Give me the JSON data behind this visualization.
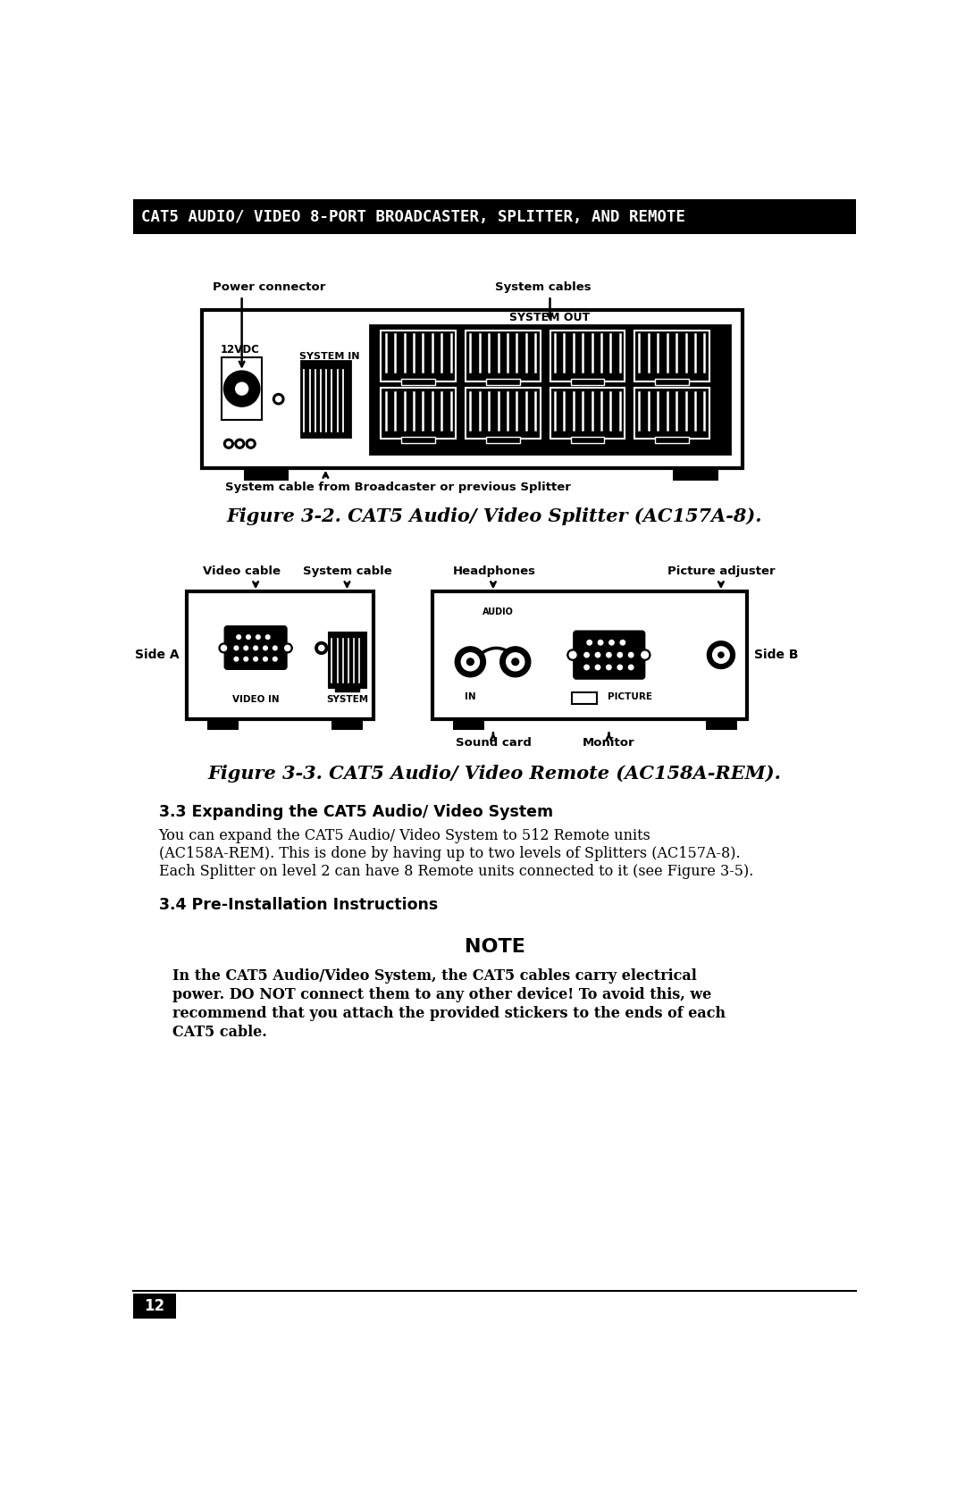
{
  "page_bg": "#ffffff",
  "header_bg": "#000000",
  "header_text": "CAT5 AUDIO/ VIDEO 8-PORT BROADCASTER, SPLITTER, AND REMOTE",
  "header_text_color": "#ffffff",
  "page_number": "12",
  "figure2_caption": "Figure 3-2. CAT5 Audio/ Video Splitter (AC157A-8).",
  "figure3_caption": "Figure 3-3. CAT5 Audio/ Video Remote (AC158A-REM).",
  "section33_title": "3.3 Expanding the CAT5 Audio/ Video System",
  "section33_line1": "You can expand the CAT5 Audio/ Video System to 512 Remote units",
  "section33_line2": "(AC158A-REM). This is done by having up to two levels of Splitters (AC157A-8).",
  "section33_line3": "Each Splitter on level 2 can have 8 Remote units connected to it (see Figure 3-5).",
  "section34_title": "3.4 Pre-Installation Instructions",
  "note_title": "NOTE",
  "note_line1": "In the CAT5 Audio/Video System, the CAT5 cables carry electrical",
  "note_line2": "power. DO NOT connect them to any other device! To avoid this, we",
  "note_line3": "recommend that you attach the provided stickers to the ends of each",
  "note_line4": "CAT5 cable.",
  "label_power_connector": "Power connector",
  "label_system_cables": "System cables",
  "label_12vdc": "12VDC",
  "label_system_in": "SYSTEM IN",
  "label_system_out": "SYSTEM OUT",
  "label_system_cable_bottom": "System cable from Broadcaster or previous Splitter",
  "label_video_cable": "Video cable",
  "label_system_cable": "System cable",
  "label_headphones": "Headphones",
  "label_picture_adjuster": "Picture adjuster",
  "label_side_a": "Side A",
  "label_side_b": "Side B",
  "label_video_in": "VIDEO IN",
  "label_system": "SYSTEM",
  "label_audio": "AUDIO",
  "label_in": "IN",
  "label_picture": "PICTURE",
  "label_sound_card": "Sound card",
  "label_monitor": "Monitor"
}
